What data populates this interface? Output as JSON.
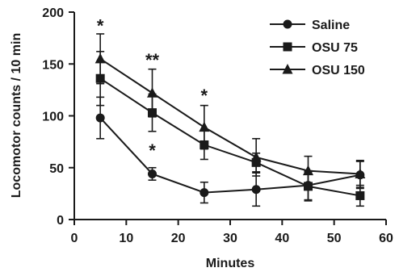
{
  "chart_data": {
    "type": "line",
    "title": "",
    "xlabel": "Minutes",
    "ylabel": "Locomotor counts / 10 min",
    "xlim": [
      0,
      60
    ],
    "ylim": [
      0,
      200
    ],
    "x_ticks": [
      0,
      10,
      20,
      30,
      40,
      50,
      60
    ],
    "y_ticks": [
      0,
      50,
      100,
      150,
      200
    ],
    "x_tick_labels": [
      "0",
      "10",
      "20",
      "30",
      "40",
      "50",
      "60"
    ],
    "y_tick_labels": [
      "0",
      "50",
      "100",
      "150",
      "200"
    ],
    "grid": false,
    "legend_position": "top-right",
    "x": [
      5,
      15,
      25,
      35,
      45,
      55
    ],
    "series": [
      {
        "name": "Saline",
        "marker": "circle",
        "values": [
          98,
          44,
          26,
          29,
          33,
          43
        ],
        "errors": [
          20,
          6,
          10,
          16,
          14,
          13
        ]
      },
      {
        "name": "OSU 75",
        "marker": "square",
        "values": [
          136,
          103,
          72,
          55,
          32,
          23
        ],
        "errors": [
          26,
          18,
          14,
          9,
          14,
          10
        ]
      },
      {
        "name": "OSU 150",
        "marker": "triangle",
        "values": [
          155,
          122,
          89,
          60,
          47,
          44
        ],
        "errors": [
          24,
          23,
          21,
          18,
          14,
          13
        ]
      }
    ],
    "annotations": [
      {
        "text": "*",
        "x": 5,
        "y": 187
      },
      {
        "text": "**",
        "x": 15,
        "y": 154
      },
      {
        "text": "*",
        "x": 25,
        "y": 120
      },
      {
        "text": "*",
        "x": 15,
        "y": 67
      }
    ]
  },
  "colors": {
    "ink": "#1a1a1a",
    "background": "#ffffff"
  }
}
